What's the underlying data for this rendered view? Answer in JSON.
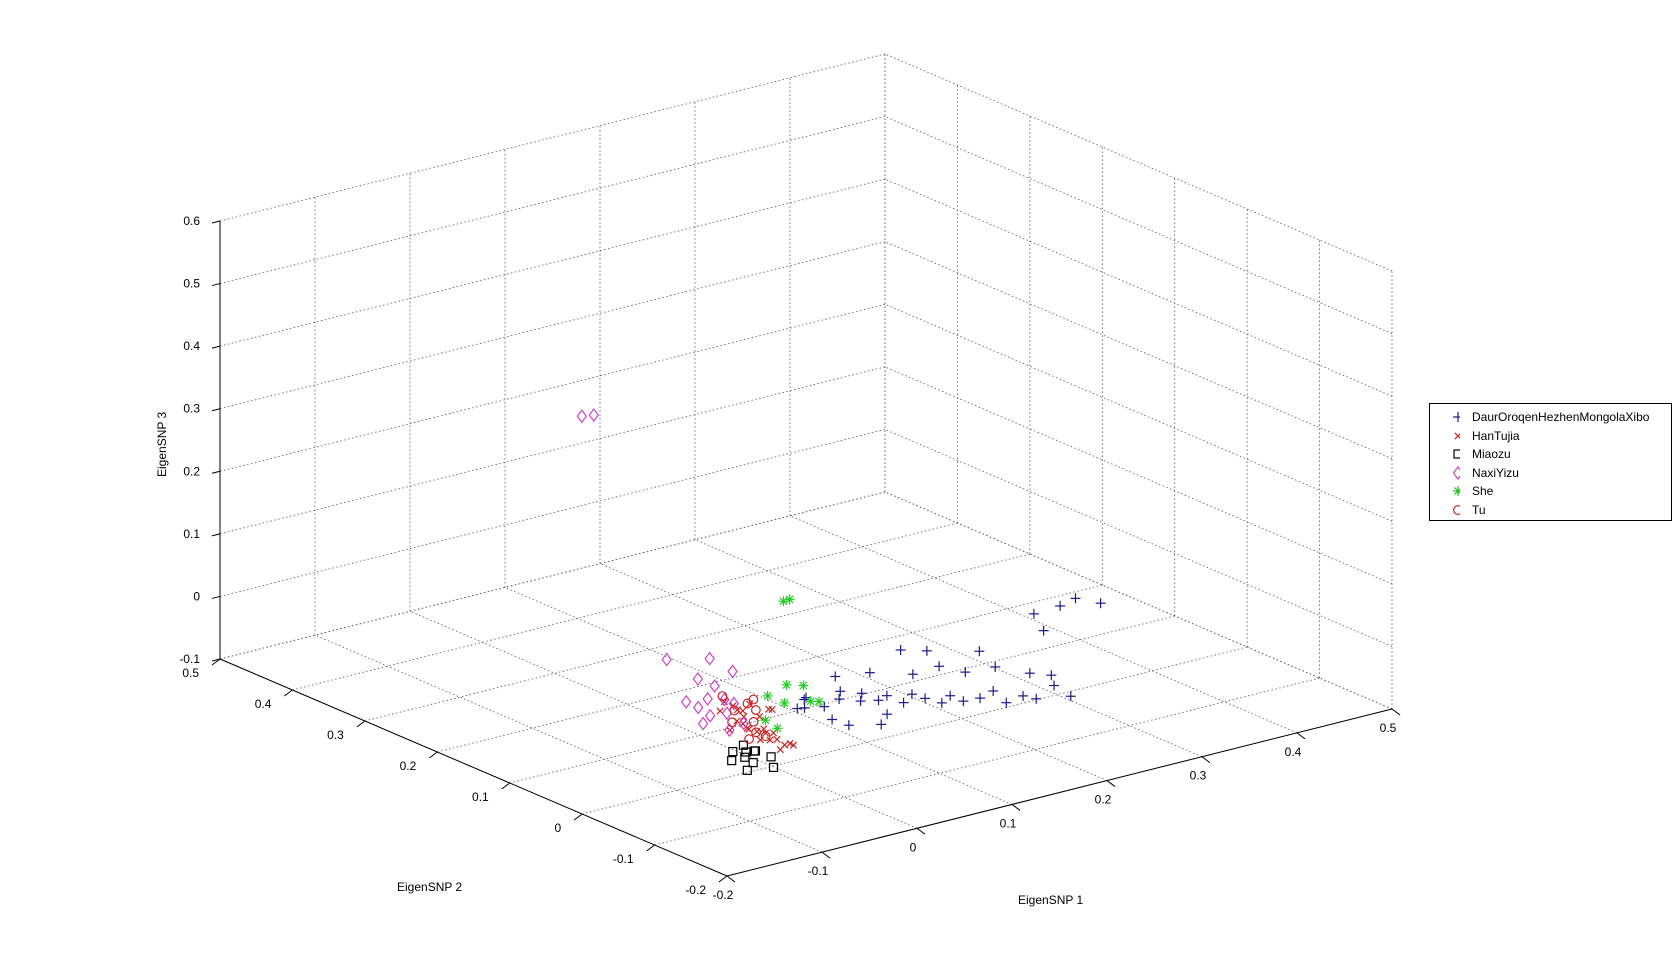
{
  "chart_data": {
    "type": "scatter3d",
    "title": "",
    "xlabel": "EigenSNP 1",
    "ylabel": "EigenSNP 2",
    "zlabel": "EigenSNP 3",
    "xlim": [
      -0.2,
      0.5
    ],
    "ylim": [
      -0.2,
      0.5
    ],
    "zlim": [
      -0.1,
      0.6
    ],
    "x_ticks": [
      "-0.2",
      "-0.1",
      "0",
      "0.1",
      "0.2",
      "0.3",
      "0.4",
      "0.5"
    ],
    "y_ticks": [
      "-0.2",
      "-0.1",
      "0",
      "0.1",
      "0.2",
      "0.3",
      "0.4",
      "0.5"
    ],
    "z_ticks": [
      "-0.1",
      "0",
      "0.1",
      "0.2",
      "0.3",
      "0.4",
      "0.5",
      "0.6"
    ],
    "grid": true,
    "legend_position": "right",
    "series": [
      {
        "name": "DaurOroqenHezhenMongolaXibo",
        "marker": "plus",
        "color": "#1a1a8c",
        "points": [
          [
            0.015,
            -0.015,
            -0.006
          ],
          [
            0.02,
            -0.018,
            0.008
          ],
          [
            0.015,
            -0.025,
            0.0
          ],
          [
            0.028,
            -0.01,
            0.004
          ],
          [
            0.032,
            -0.03,
            -0.002
          ],
          [
            0.04,
            -0.04,
            0.012
          ],
          [
            0.045,
            -0.035,
            0.02
          ],
          [
            0.055,
            -0.05,
            0.008
          ],
          [
            0.06,
            -0.045,
            0.016
          ],
          [
            0.07,
            -0.055,
            0.006
          ],
          [
            0.075,
            -0.06,
            0.014
          ],
          [
            0.085,
            -0.07,
            0.004
          ],
          [
            0.09,
            -0.075,
            0.018
          ],
          [
            0.1,
            -0.08,
            0.01
          ],
          [
            0.11,
            -0.09,
            0.004
          ],
          [
            0.115,
            -0.095,
            0.016
          ],
          [
            0.125,
            -0.1,
            0.006
          ],
          [
            0.135,
            -0.11,
            0.012
          ],
          [
            0.145,
            -0.115,
            0.022
          ],
          [
            0.155,
            -0.12,
            0.002
          ],
          [
            0.165,
            -0.13,
            0.014
          ],
          [
            0.175,
            -0.135,
            0.008
          ],
          [
            0.19,
            -0.14,
            0.026
          ],
          [
            0.2,
            -0.15,
            0.01
          ],
          [
            0.055,
            -0.015,
            0.03
          ],
          [
            0.08,
            -0.03,
            0.034
          ],
          [
            0.11,
            -0.05,
            0.03
          ],
          [
            0.13,
            -0.06,
            0.04
          ],
          [
            0.15,
            -0.07,
            0.028
          ],
          [
            0.17,
            -0.085,
            0.036
          ],
          [
            0.195,
            -0.1,
            0.024
          ],
          [
            0.21,
            -0.11,
            0.02
          ],
          [
            0.06,
            -0.08,
            0.0
          ],
          [
            0.05,
            -0.085,
            -0.01
          ],
          [
            0.035,
            -0.06,
            -0.018
          ],
          [
            0.025,
            -0.05,
            -0.01
          ],
          [
            0.245,
            -0.04,
            0.07
          ],
          [
            0.265,
            -0.05,
            0.08
          ],
          [
            0.285,
            -0.045,
            0.082
          ],
          [
            0.3,
            -0.06,
            0.076
          ],
          [
            0.24,
            -0.06,
            0.055
          ],
          [
            0.12,
            -0.02,
            0.05
          ],
          [
            0.14,
            -0.03,
            0.046
          ],
          [
            0.18,
            -0.05,
            0.04
          ]
        ]
      },
      {
        "name": "HanTujia",
        "marker": "x",
        "color": "#cc2222",
        "points": [
          [
            -0.06,
            -0.03,
            0.01
          ],
          [
            -0.055,
            -0.04,
            0.0
          ],
          [
            -0.05,
            -0.025,
            0.02
          ],
          [
            -0.045,
            -0.05,
            -0.005
          ],
          [
            -0.065,
            -0.045,
            0.015
          ],
          [
            -0.058,
            -0.055,
            0.005
          ],
          [
            -0.048,
            -0.06,
            -0.01
          ],
          [
            -0.04,
            -0.035,
            0.012
          ],
          [
            -0.07,
            -0.02,
            0.025
          ],
          [
            -0.062,
            -0.065,
            -0.002
          ],
          [
            -0.052,
            -0.07,
            0.008
          ],
          [
            -0.044,
            -0.075,
            -0.012
          ],
          [
            -0.038,
            -0.045,
            0.028
          ],
          [
            -0.068,
            -0.05,
            0.03
          ],
          [
            -0.056,
            -0.08,
            0.004
          ],
          [
            -0.046,
            -0.085,
            -0.004
          ],
          [
            -0.072,
            -0.06,
            0.018
          ],
          [
            -0.06,
            -0.09,
            -0.006
          ],
          [
            -0.05,
            -0.095,
            0.0
          ],
          [
            -0.042,
            -0.055,
            0.034
          ],
          [
            -0.066,
            -0.075,
            0.022
          ],
          [
            -0.054,
            -0.04,
            0.04
          ],
          [
            -0.064,
            -0.03,
            0.036
          ],
          [
            -0.048,
            -0.015,
            0.016
          ],
          [
            -0.075,
            -0.04,
            0.006
          ],
          [
            -0.058,
            -0.01,
            0.03
          ]
        ]
      },
      {
        "name": "Miaozu",
        "marker": "square",
        "color": "#000000",
        "points": [
          [
            -0.11,
            -0.09,
            0.01
          ],
          [
            -0.1,
            -0.095,
            0.008
          ],
          [
            -0.095,
            -0.085,
            0.012
          ],
          [
            -0.105,
            -0.1,
            0.004
          ],
          [
            -0.09,
            -0.095,
            0.006
          ],
          [
            -0.115,
            -0.095,
            0.0
          ],
          [
            -0.1,
            -0.105,
            -0.004
          ],
          [
            -0.085,
            -0.11,
            0.002
          ],
          [
            -0.11,
            -0.11,
            -0.01
          ],
          [
            -0.09,
            -0.12,
            -0.008
          ],
          [
            -0.095,
            -0.1,
            0.01
          ]
        ]
      },
      {
        "name": "NaxiYizu",
        "marker": "diamond",
        "color": "#cc44cc",
        "points": [
          [
            -0.02,
            0.22,
            0.36
          ],
          [
            -0.025,
            0.23,
            0.355
          ],
          [
            -0.05,
            0.08,
            0.05
          ],
          [
            -0.04,
            0.05,
            0.03
          ],
          [
            -0.03,
            0.04,
            0.02
          ],
          [
            -0.045,
            0.03,
            0.01
          ],
          [
            -0.035,
            0.02,
            0.01
          ],
          [
            -0.055,
            0.03,
            0.0
          ],
          [
            -0.04,
            0.01,
            -0.005
          ],
          [
            -0.025,
            0.02,
            0.0
          ],
          [
            -0.06,
            0.04,
            0.006
          ],
          [
            -0.05,
            0.02,
            -0.01
          ],
          [
            -0.065,
            0.01,
            -0.012
          ],
          [
            -0.03,
            0.0,
            -0.02
          ],
          [
            -0.045,
            0.0,
            -0.025
          ],
          [
            -0.015,
            0.035,
            0.04
          ],
          [
            -0.02,
            0.06,
            0.05
          ]
        ]
      },
      {
        "name": "She",
        "marker": "star",
        "color": "#22cc22",
        "points": [
          [
            0.05,
            0.05,
            0.12
          ],
          [
            0.055,
            0.048,
            0.122
          ],
          [
            -0.02,
            -0.02,
            0.03
          ],
          [
            0.0,
            -0.02,
            0.04
          ],
          [
            0.01,
            -0.03,
            0.04
          ],
          [
            -0.01,
            -0.03,
            0.02
          ],
          [
            0.01,
            -0.04,
            0.02
          ],
          [
            0.015,
            -0.045,
            0.02
          ],
          [
            -0.03,
            -0.03,
            0.0
          ],
          [
            -0.025,
            -0.04,
            -0.01
          ]
        ]
      },
      {
        "name": "Tu",
        "marker": "circle",
        "color": "#cc2222",
        "points": [
          [
            -0.06,
            -0.01,
            0.04
          ],
          [
            -0.055,
            -0.02,
            0.02
          ],
          [
            -0.045,
            -0.025,
            0.03
          ],
          [
            -0.065,
            -0.03,
            0.01
          ],
          [
            -0.05,
            -0.04,
            0.01
          ],
          [
            -0.04,
            -0.03,
            0.02
          ],
          [
            -0.035,
            -0.02,
            0.03
          ],
          [
            -0.055,
            -0.05,
            0.0
          ],
          [
            -0.045,
            -0.05,
            -0.01
          ],
          [
            -0.07,
            -0.06,
            0.0
          ]
        ]
      }
    ]
  }
}
